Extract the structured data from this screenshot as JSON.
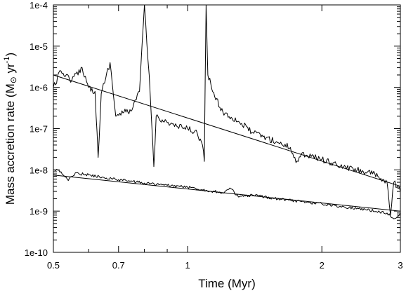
{
  "chart_data": {
    "type": "line",
    "title": "",
    "xlabel": "Time (Myr)",
    "ylabel": {
      "prefix": "Mass accretion rate (M",
      "sun_symbol": "⊙",
      "unit": " yr",
      "exponent": "-1",
      "suffix": ")"
    },
    "x_scale": "log",
    "y_scale": "log",
    "xlim": [
      0.5,
      3
    ],
    "ylim": [
      1e-10,
      0.0001
    ],
    "x_ticks": [
      {
        "value": 0.5,
        "label": "0.5"
      },
      {
        "value": 0.7,
        "label": "0.7"
      },
      {
        "value": 1,
        "label": "1"
      },
      {
        "value": 2,
        "label": "2"
      },
      {
        "value": 3,
        "label": "3"
      }
    ],
    "y_ticks": [
      {
        "value": 1e-10,
        "label": "1e-10"
      },
      {
        "value": 1e-09,
        "label": "1e-9"
      },
      {
        "value": 1e-08,
        "label": "1e-8"
      },
      {
        "value": 1e-07,
        "label": "1e-7"
      },
      {
        "value": 1e-06,
        "label": "1e-6"
      },
      {
        "value": 1e-05,
        "label": "1e-5"
      },
      {
        "value": 0.0001,
        "label": "1e-4"
      }
    ],
    "grid": false,
    "series": [
      {
        "kind": "noisy",
        "color": "#000000",
        "points": [
          [
            0.5,
            1e-06
          ],
          [
            0.52,
            2.5e-06
          ],
          [
            0.55,
            1.5e-06
          ],
          [
            0.58,
            3e-06
          ],
          [
            0.6,
            1e-06
          ],
          [
            0.62,
            8e-07
          ],
          [
            0.63,
            2e-08
          ],
          [
            0.64,
            7e-07
          ],
          [
            0.67,
            4e-06
          ],
          [
            0.69,
            2e-07
          ],
          [
            0.72,
            2.5e-07
          ],
          [
            0.75,
            2.8e-07
          ],
          [
            0.78,
            8e-07
          ],
          [
            0.8,
            0.0001
          ],
          [
            0.81,
            1.2e-05
          ],
          [
            0.82,
            2e-06
          ],
          [
            0.84,
            1.2e-08
          ],
          [
            0.85,
            2e-07
          ],
          [
            0.9,
            1.4e-07
          ],
          [
            0.95,
            1.1e-07
          ],
          [
            1.0,
            1e-07
          ],
          [
            1.05,
            8e-08
          ],
          [
            1.08,
            4e-08
          ],
          [
            1.09,
            1.6e-08
          ],
          [
            1.1,
            0.0001
          ],
          [
            1.11,
            2e-06
          ],
          [
            1.15,
            6e-07
          ],
          [
            1.2,
            2.5e-07
          ],
          [
            1.3,
            1.5e-07
          ],
          [
            1.4,
            8e-08
          ],
          [
            1.5,
            6e-08
          ],
          [
            1.6,
            4.5e-08
          ],
          [
            1.7,
            3.5e-08
          ],
          [
            1.75,
            1.5e-08
          ],
          [
            1.8,
            2.5e-08
          ],
          [
            2.0,
            1.8e-08
          ],
          [
            2.2,
            1.2e-08
          ],
          [
            2.4,
            1e-08
          ],
          [
            2.6,
            8e-09
          ],
          [
            2.8,
            5e-09
          ],
          [
            2.85,
            8e-10
          ],
          [
            2.9,
            5e-09
          ],
          [
            3.0,
            3e-09
          ]
        ]
      },
      {
        "kind": "fit",
        "color": "#000000",
        "points": [
          [
            0.5,
            2e-06
          ],
          [
            3.0,
            4e-09
          ]
        ]
      },
      {
        "kind": "noisy",
        "color": "#000000",
        "points": [
          [
            0.5,
            1e-08
          ],
          [
            0.52,
            9e-09
          ],
          [
            0.54,
            5.5e-09
          ],
          [
            0.56,
            8.5e-09
          ],
          [
            0.6,
            7.5e-09
          ],
          [
            0.65,
            6.5e-09
          ],
          [
            0.7,
            5.8e-09
          ],
          [
            0.8,
            4.8e-09
          ],
          [
            0.9,
            4.2e-09
          ],
          [
            1.0,
            3.8e-09
          ],
          [
            1.1,
            3.2e-09
          ],
          [
            1.2,
            2.8e-09
          ],
          [
            1.25,
            3.5e-09
          ],
          [
            1.3,
            2.2e-09
          ],
          [
            1.4,
            2.4e-09
          ],
          [
            1.6,
            2e-09
          ],
          [
            1.8,
            1.7e-09
          ],
          [
            2.0,
            1.5e-09
          ],
          [
            2.2,
            1.3e-09
          ],
          [
            2.5,
            1.1e-09
          ],
          [
            2.8,
            9e-10
          ],
          [
            2.9,
            6.5e-10
          ],
          [
            3.0,
            9e-10
          ]
        ]
      },
      {
        "kind": "fit",
        "color": "#000000",
        "points": [
          [
            0.5,
            7.5e-09
          ],
          [
            3.0,
            1e-09
          ]
        ]
      }
    ]
  }
}
